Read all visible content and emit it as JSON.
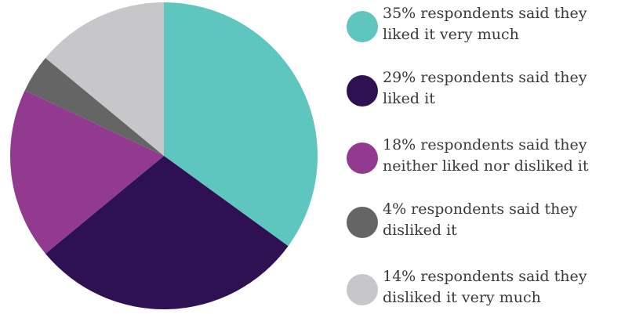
{
  "chart_data": {
    "type": "pie",
    "start_angle_deg": 0,
    "direction": "clockwise",
    "slices": [
      {
        "value": 35,
        "color": "#5ec6bf",
        "label_lines": [
          "35% respondents said they",
          "liked it very much"
        ]
      },
      {
        "value": 29,
        "color": "#2e1153",
        "label_lines": [
          "29% respondents said they",
          "liked it"
        ]
      },
      {
        "value": 18,
        "color": "#913a90",
        "label_lines": [
          "18% respondents said they",
          "neither liked nor disliked it"
        ]
      },
      {
        "value": 4,
        "color": "#656565",
        "label_lines": [
          "4% respondents said they",
          "disliked it"
        ]
      },
      {
        "value": 14,
        "color": "#c7c7c9",
        "label_lines": [
          "14% respondents said they",
          "disliked it very much"
        ]
      }
    ],
    "legend_placement": "right"
  }
}
